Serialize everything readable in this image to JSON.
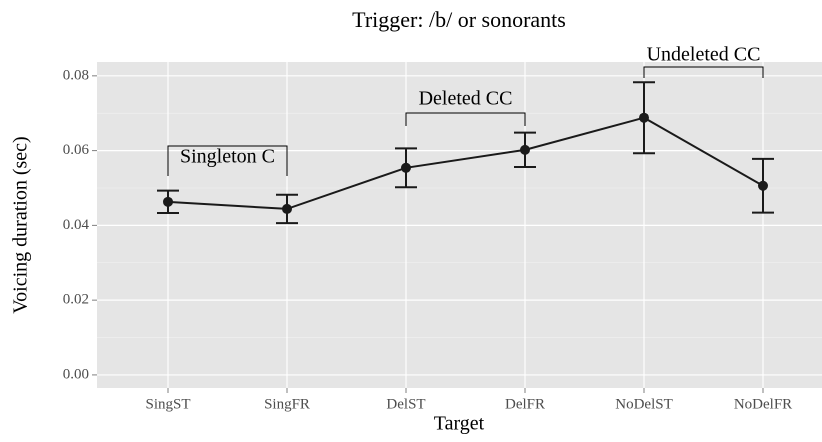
{
  "chart_data": {
    "type": "line_errorbar",
    "title": "Trigger: /b/ or sonorants",
    "x_label": "Target",
    "y_label": "Voicing duration (sec)",
    "categories": [
      "SingST",
      "SingFR",
      "DelST",
      "DelFR",
      "NoDelST",
      "NoDelFR"
    ],
    "values": [
      0.0463,
      0.0444,
      0.0554,
      0.0602,
      0.0688,
      0.0506
    ],
    "errors": [
      0.003,
      0.0038,
      0.0052,
      0.0046,
      0.0095,
      0.0072
    ],
    "color": "#1a1a1a",
    "ylim": [
      -0.0035,
      0.0837
    ],
    "yticks": [
      {
        "value": 0,
        "label": "0.00"
      },
      {
        "value": 0.02,
        "label": "0.02"
      },
      {
        "value": 0.04,
        "label": "0.04"
      },
      {
        "value": 0.06,
        "label": "0.06"
      },
      {
        "value": 0.08,
        "label": "0.08"
      }
    ],
    "grid": true,
    "annotations": [
      "Singleton C",
      "Deleted CC",
      "Undeleted CC"
    ]
  }
}
